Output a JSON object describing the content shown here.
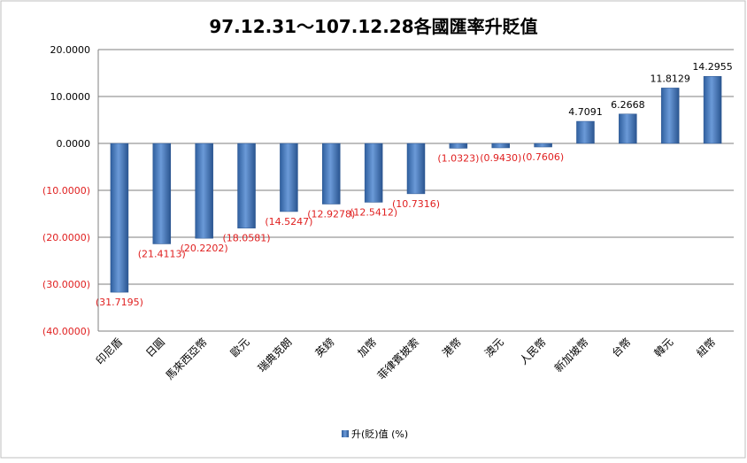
{
  "chart_data": {
    "type": "bar",
    "title": "97.12.31～107.12.28各國匯率升貶值",
    "categories": [
      "印尼盾",
      "日圓",
      "馬來西亞幣",
      "歐元",
      "瑞典克朗",
      "英鎊",
      "加幣",
      "菲律賓披索",
      "港幣",
      "澳元",
      "人民幣",
      "新加坡幣",
      "台幣",
      "韓元",
      "紐幣"
    ],
    "series": [
      {
        "name": "升(貶)值 (%)",
        "values": [
          -31.7195,
          -21.4113,
          -20.2202,
          -18.0581,
          -14.5247,
          -12.9278,
          -12.5412,
          -10.7316,
          -1.0323,
          -0.943,
          -0.7606,
          4.7091,
          6.2668,
          11.8129,
          14.2955
        ]
      }
    ],
    "value_labels": [
      "(31.7195)",
      "(21.4113)",
      "(20.2202)",
      "(18.0581)",
      "(14.5247)",
      "(12.9278)",
      "(12.5412)",
      "(10.7316)",
      "(1.0323)",
      "(0.9430)",
      "(0.7606)",
      "4.7091",
      "6.2668",
      "11.8129",
      "14.2955"
    ],
    "y_ticks": [
      {
        "value": 20,
        "label": "20.0000"
      },
      {
        "value": 10,
        "label": "10.0000"
      },
      {
        "value": 0,
        "label": "0.0000"
      },
      {
        "value": -10,
        "label": "(10.0000)"
      },
      {
        "value": -20,
        "label": "(20.0000)"
      },
      {
        "value": -30,
        "label": "(30.0000)"
      },
      {
        "value": -40,
        "label": "(40.0000)"
      }
    ],
    "ylim": [
      -40,
      20
    ],
    "grid": true,
    "legend_position": "bottom",
    "colors": {
      "bar": "#4a7fc0",
      "bar_dark": "#2b5590",
      "negative_text": "#e02020",
      "positive_text": "#000000",
      "grid": "#7f7f7f"
    }
  }
}
